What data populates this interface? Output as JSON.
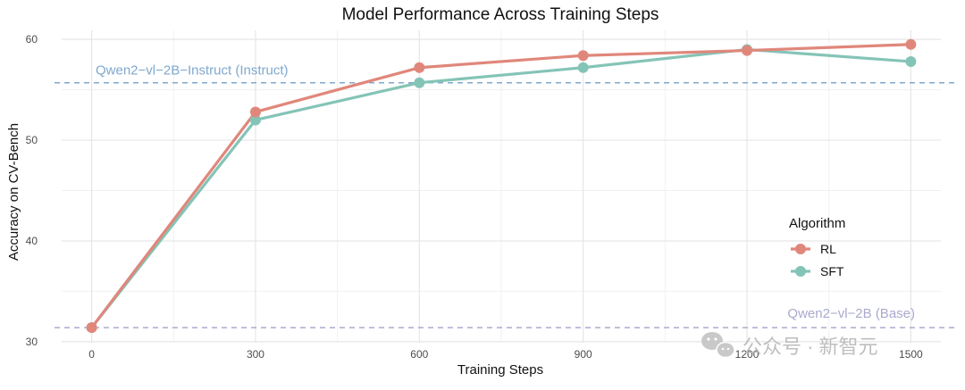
{
  "chart_data": {
    "type": "line",
    "title": "Model Performance Across Training Steps",
    "xlabel": "Training Steps",
    "ylabel": "Accuracy on CV-Bench",
    "x": [
      0,
      300,
      600,
      900,
      1200,
      1500
    ],
    "x_ticks": [
      "0",
      "300",
      "600",
      "900",
      "1200",
      "1500"
    ],
    "y_ticks": [
      "30",
      "40",
      "50",
      "60"
    ],
    "xlim": [
      -55,
      1555
    ],
    "ylim": [
      29.9,
      60.9
    ],
    "grid": true,
    "legend": {
      "title": "Algorithm",
      "position": "right"
    },
    "series": [
      {
        "name": "RL",
        "color": "#E0877B",
        "values": [
          31.4,
          52.8,
          57.2,
          58.4,
          58.9,
          59.5
        ]
      },
      {
        "name": "SFT",
        "color": "#84C4B7",
        "values": [
          31.4,
          52.0,
          55.7,
          57.2,
          59.0,
          57.8
        ]
      }
    ],
    "reference_lines": [
      {
        "label": "Qwen2−vl−2B−Instruct (Instruct)",
        "value": 55.7,
        "color": "#7FA8CE"
      },
      {
        "label": "Qwen2−vl−2B (Base)",
        "value": 31.4,
        "color": "#A9A9CF"
      }
    ]
  },
  "watermark": {
    "icon": "wechat-icon",
    "text": "公众号 · 新智元"
  }
}
